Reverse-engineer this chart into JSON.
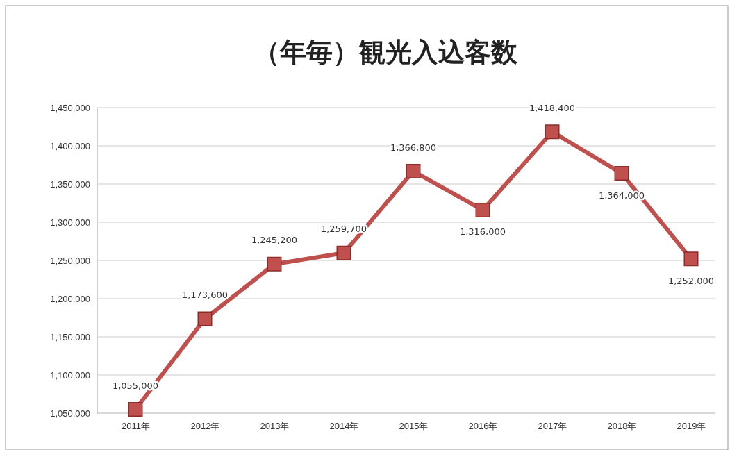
{
  "chart_data": {
    "type": "line",
    "title": "（年毎）観光入込客数",
    "categories": [
      "2011年",
      "2012年",
      "2013年",
      "2014年",
      "2015年",
      "2016年",
      "2017年",
      "2018年",
      "2019年"
    ],
    "series": [
      {
        "color": "#c0504d",
        "values": [
          1055000,
          1173600,
          1245200,
          1259700,
          1366800,
          1316000,
          1418400,
          1364000,
          1252000
        ]
      }
    ],
    "value_labels": [
      "1,055,000",
      "1,173,600",
      "1,245,200",
      "1,259,700",
      "1,366,800",
      "1,316,000",
      "1,418,400",
      "1,364,000",
      "1,252,000"
    ],
    "ylim": [
      1050000,
      1450000
    ],
    "yticks": [
      {
        "value": 1050000,
        "label": "1,050,000"
      },
      {
        "value": 1100000,
        "label": "1,100,000"
      },
      {
        "value": 1150000,
        "label": "1,150,000"
      },
      {
        "value": 1200000,
        "label": "1,200,000"
      },
      {
        "value": 1250000,
        "label": "1,250,000"
      },
      {
        "value": 1300000,
        "label": "1,300,000"
      },
      {
        "value": 1350000,
        "label": "1,350,000"
      },
      {
        "value": 1400000,
        "label": "1,400,000"
      },
      {
        "value": 1450000,
        "label": "1,450,000"
      }
    ],
    "grid": "y",
    "marker": "square",
    "line_style": "solid"
  }
}
